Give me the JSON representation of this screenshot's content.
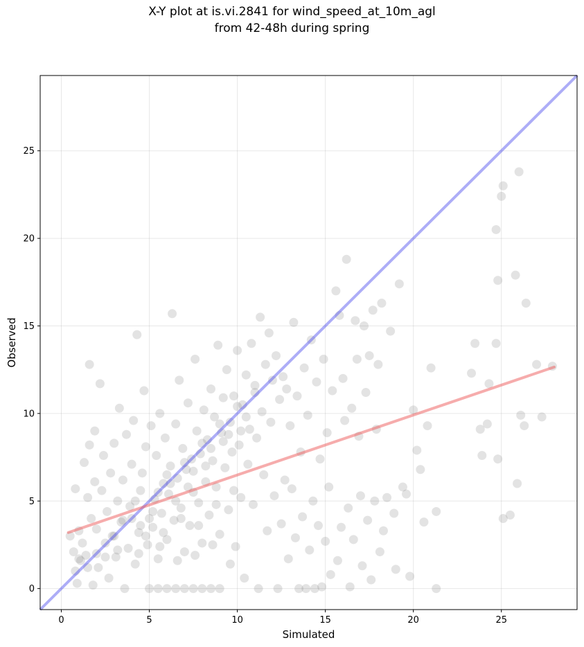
{
  "chart_data": {
    "type": "scatter",
    "title_lines": [
      "X-Y plot at is.vi.2841 for wind_speed_at_10m_agl",
      "from 42-48h during spring"
    ],
    "xlabel": "Simulated",
    "ylabel": "Observed",
    "xlim": [
      -1.2,
      29.3
    ],
    "ylim": [
      -1.2,
      29.3
    ],
    "xticks": [
      0,
      5,
      10,
      15,
      20,
      25
    ],
    "yticks": [
      0,
      5,
      10,
      15,
      20,
      25
    ],
    "grid": true,
    "point_color": "#808080",
    "identity_line_color": "#4a4aee",
    "fit_line_color": "#ee5a5a",
    "identity_line": {
      "x": [
        -1.2,
        29.3
      ],
      "y": [
        -1.2,
        29.3
      ]
    },
    "fit_line": {
      "x": [
        0.4,
        28.0
      ],
      "y": [
        3.2,
        12.65
      ]
    },
    "points": [
      [
        0.5,
        3.0
      ],
      [
        0.7,
        2.1
      ],
      [
        0.8,
        1.0
      ],
      [
        0.8,
        5.7
      ],
      [
        0.9,
        0.3
      ],
      [
        1.0,
        3.3
      ],
      [
        1.1,
        1.6
      ],
      [
        1.2,
        2.6
      ],
      [
        1.3,
        7.2
      ],
      [
        1.4,
        1.9
      ],
      [
        1.5,
        5.2
      ],
      [
        1.6,
        8.2
      ],
      [
        1.6,
        12.8
      ],
      [
        1.7,
        4.0
      ],
      [
        1.8,
        0.2
      ],
      [
        1.9,
        6.1
      ],
      [
        1.9,
        9.0
      ],
      [
        2.0,
        3.4
      ],
      [
        2.1,
        1.2
      ],
      [
        2.2,
        11.7
      ],
      [
        2.3,
        5.6
      ],
      [
        2.4,
        7.6
      ],
      [
        2.5,
        2.6
      ],
      [
        2.6,
        4.4
      ],
      [
        2.7,
        0.6
      ],
      [
        2.8,
        6.6
      ],
      [
        2.9,
        3.0
      ],
      [
        3.0,
        8.3
      ],
      [
        3.1,
        1.8
      ],
      [
        3.2,
        5.0
      ],
      [
        3.3,
        10.3
      ],
      [
        3.4,
        3.8
      ],
      [
        3.5,
        6.2
      ],
      [
        3.6,
        0.0
      ],
      [
        3.7,
        8.8
      ],
      [
        3.8,
        2.3
      ],
      [
        3.9,
        4.7
      ],
      [
        4.0,
        7.1
      ],
      [
        4.1,
        9.6
      ],
      [
        4.2,
        1.4
      ],
      [
        4.3,
        14.5
      ],
      [
        4.4,
        3.2
      ],
      [
        4.5,
        5.6
      ],
      [
        4.6,
        6.6
      ],
      [
        4.7,
        11.3
      ],
      [
        4.8,
        8.1
      ],
      [
        4.9,
        2.5
      ],
      [
        5.0,
        4.0
      ],
      [
        5.0,
        0.0
      ],
      [
        5.1,
        9.3
      ],
      [
        5.2,
        3.5
      ],
      [
        5.3,
        5.1
      ],
      [
        5.4,
        7.6
      ],
      [
        5.5,
        1.7
      ],
      [
        5.5,
        0.0
      ],
      [
        5.6,
        10.0
      ],
      [
        5.7,
        4.3
      ],
      [
        5.8,
        6.0
      ],
      [
        5.9,
        8.6
      ],
      [
        6.0,
        2.8
      ],
      [
        6.0,
        0.0
      ],
      [
        6.1,
        5.4
      ],
      [
        6.2,
        7.0
      ],
      [
        6.3,
        15.7
      ],
      [
        6.4,
        3.9
      ],
      [
        6.5,
        9.4
      ],
      [
        6.5,
        0.0
      ],
      [
        6.6,
        6.3
      ],
      [
        6.7,
        11.9
      ],
      [
        6.8,
        4.6
      ],
      [
        6.9,
        8.0
      ],
      [
        7.0,
        2.1
      ],
      [
        7.0,
        0.0
      ],
      [
        7.1,
        6.8
      ],
      [
        7.2,
        10.6
      ],
      [
        7.3,
        3.6
      ],
      [
        7.4,
        7.4
      ],
      [
        7.5,
        5.5
      ],
      [
        7.5,
        0.0
      ],
      [
        7.6,
        13.1
      ],
      [
        7.7,
        9.0
      ],
      [
        7.8,
        4.9
      ],
      [
        7.9,
        7.7
      ],
      [
        8.0,
        2.6
      ],
      [
        8.0,
        0.0
      ],
      [
        8.1,
        10.2
      ],
      [
        8.2,
        6.1
      ],
      [
        8.3,
        8.5
      ],
      [
        8.4,
        4.2
      ],
      [
        8.5,
        0.0
      ],
      [
        8.5,
        11.4
      ],
      [
        8.6,
        7.3
      ],
      [
        8.7,
        9.8
      ],
      [
        8.8,
        5.8
      ],
      [
        8.9,
        13.9
      ],
      [
        9.0,
        3.1
      ],
      [
        9.0,
        0.0
      ],
      [
        9.1,
        8.9
      ],
      [
        9.2,
        10.9
      ],
      [
        9.3,
        6.9
      ],
      [
        9.4,
        12.5
      ],
      [
        9.5,
        4.5
      ],
      [
        9.6,
        9.5
      ],
      [
        9.7,
        7.8
      ],
      [
        9.8,
        11.0
      ],
      [
        9.9,
        2.4
      ],
      [
        10.0,
        13.6
      ],
      [
        10.1,
        8.2
      ],
      [
        10.2,
        5.2
      ],
      [
        10.3,
        10.5
      ],
      [
        10.4,
        0.6
      ],
      [
        10.5,
        12.2
      ],
      [
        10.6,
        7.1
      ],
      [
        10.7,
        9.1
      ],
      [
        10.8,
        14.0
      ],
      [
        10.9,
        4.8
      ],
      [
        11.0,
        11.6
      ],
      [
        11.1,
        8.6
      ],
      [
        11.2,
        0.0
      ],
      [
        11.3,
        15.5
      ],
      [
        11.4,
        10.1
      ],
      [
        11.5,
        6.5
      ],
      [
        11.6,
        12.8
      ],
      [
        11.7,
        3.3
      ],
      [
        11.8,
        14.6
      ],
      [
        11.9,
        9.5
      ],
      [
        12.0,
        11.9
      ],
      [
        12.1,
        5.3
      ],
      [
        12.2,
        13.3
      ],
      [
        12.3,
        0.0
      ],
      [
        12.4,
        10.8
      ],
      [
        12.5,
        3.7
      ],
      [
        12.6,
        12.1
      ],
      [
        12.7,
        6.2
      ],
      [
        12.8,
        11.4
      ],
      [
        12.9,
        1.7
      ],
      [
        13.0,
        9.3
      ],
      [
        13.1,
        5.7
      ],
      [
        13.2,
        15.2
      ],
      [
        13.3,
        2.9
      ],
      [
        13.4,
        11.0
      ],
      [
        13.5,
        0.0
      ],
      [
        13.6,
        7.8
      ],
      [
        13.7,
        4.1
      ],
      [
        13.8,
        12.6
      ],
      [
        13.9,
        0.0
      ],
      [
        14.0,
        9.9
      ],
      [
        14.1,
        2.2
      ],
      [
        14.2,
        14.2
      ],
      [
        14.3,
        5.0
      ],
      [
        14.4,
        0.0
      ],
      [
        14.5,
        11.8
      ],
      [
        14.6,
        3.6
      ],
      [
        14.7,
        7.4
      ],
      [
        14.8,
        0.1
      ],
      [
        14.9,
        13.1
      ],
      [
        15.0,
        2.7
      ],
      [
        15.1,
        8.9
      ],
      [
        15.2,
        5.8
      ],
      [
        15.3,
        0.8
      ],
      [
        15.4,
        11.3
      ],
      [
        15.6,
        17.0
      ],
      [
        15.7,
        1.6
      ],
      [
        15.8,
        15.6
      ],
      [
        15.9,
        3.5
      ],
      [
        16.0,
        12.0
      ],
      [
        16.1,
        9.6
      ],
      [
        16.2,
        18.8
      ],
      [
        16.3,
        4.6
      ],
      [
        16.4,
        0.1
      ],
      [
        16.5,
        10.3
      ],
      [
        16.6,
        2.8
      ],
      [
        16.7,
        15.3
      ],
      [
        16.8,
        13.1
      ],
      [
        16.9,
        8.7
      ],
      [
        17.0,
        5.3
      ],
      [
        17.1,
        1.3
      ],
      [
        17.2,
        15.0
      ],
      [
        17.3,
        11.2
      ],
      [
        17.4,
        3.9
      ],
      [
        17.5,
        13.3
      ],
      [
        17.6,
        0.5
      ],
      [
        17.7,
        15.9
      ],
      [
        17.8,
        5.0
      ],
      [
        17.9,
        9.1
      ],
      [
        18.0,
        12.8
      ],
      [
        18.1,
        2.1
      ],
      [
        18.2,
        16.3
      ],
      [
        18.3,
        3.3
      ],
      [
        18.5,
        5.2
      ],
      [
        18.7,
        14.7
      ],
      [
        18.9,
        4.3
      ],
      [
        19.0,
        1.1
      ],
      [
        19.2,
        17.4
      ],
      [
        19.4,
        5.8
      ],
      [
        19.6,
        5.4
      ],
      [
        19.8,
        0.7
      ],
      [
        20.0,
        10.2
      ],
      [
        20.2,
        7.9
      ],
      [
        20.4,
        6.8
      ],
      [
        20.6,
        3.8
      ],
      [
        20.8,
        9.3
      ],
      [
        21.0,
        12.6
      ],
      [
        21.3,
        4.4
      ],
      [
        21.3,
        0.0
      ],
      [
        23.3,
        12.3
      ],
      [
        23.5,
        14.0
      ],
      [
        23.8,
        9.1
      ],
      [
        23.9,
        7.6
      ],
      [
        24.2,
        9.4
      ],
      [
        24.3,
        11.7
      ],
      [
        24.7,
        14.0
      ],
      [
        24.7,
        20.5
      ],
      [
        24.8,
        17.6
      ],
      [
        24.8,
        7.4
      ],
      [
        25.0,
        22.4
      ],
      [
        25.1,
        23.0
      ],
      [
        25.1,
        4.0
      ],
      [
        25.5,
        4.2
      ],
      [
        25.8,
        17.9
      ],
      [
        25.9,
        6.0
      ],
      [
        26.0,
        23.8
      ],
      [
        26.1,
        9.9
      ],
      [
        26.3,
        9.3
      ],
      [
        26.4,
        16.3
      ],
      [
        27.0,
        12.8
      ],
      [
        27.3,
        9.8
      ],
      [
        27.9,
        12.7
      ],
      [
        2.0,
        2.0
      ],
      [
        3.0,
        3.0
      ],
      [
        4.0,
        4.0
      ],
      [
        4.5,
        3.6
      ],
      [
        5.5,
        5.5
      ],
      [
        6.0,
        6.5
      ],
      [
        6.5,
        5.0
      ],
      [
        7.0,
        7.2
      ],
      [
        7.5,
        6.7
      ],
      [
        8.0,
        8.3
      ],
      [
        8.5,
        8.0
      ],
      [
        9.0,
        9.4
      ],
      [
        9.5,
        8.8
      ],
      [
        10.0,
        10.4
      ],
      [
        10.5,
        9.8
      ],
      [
        11.0,
        11.2
      ],
      [
        3.5,
        3.9
      ],
      [
        4.2,
        5.0
      ],
      [
        5.2,
        4.4
      ],
      [
        6.2,
        6.0
      ],
      [
        7.2,
        5.8
      ],
      [
        8.2,
        7.0
      ],
      [
        9.2,
        8.4
      ],
      [
        10.2,
        9.0
      ],
      [
        4.8,
        3.0
      ],
      [
        5.8,
        3.2
      ],
      [
        6.8,
        4.0
      ],
      [
        7.8,
        3.6
      ],
      [
        8.8,
        4.8
      ],
      [
        9.8,
        5.6
      ],
      [
        1.0,
        1.7
      ],
      [
        1.5,
        1.2
      ],
      [
        2.5,
        1.8
      ],
      [
        3.2,
        2.2
      ],
      [
        4.4,
        2.0
      ],
      [
        5.6,
        2.4
      ],
      [
        6.6,
        1.6
      ],
      [
        7.6,
        1.9
      ],
      [
        8.6,
        2.5
      ],
      [
        9.6,
        1.4
      ]
    ]
  }
}
